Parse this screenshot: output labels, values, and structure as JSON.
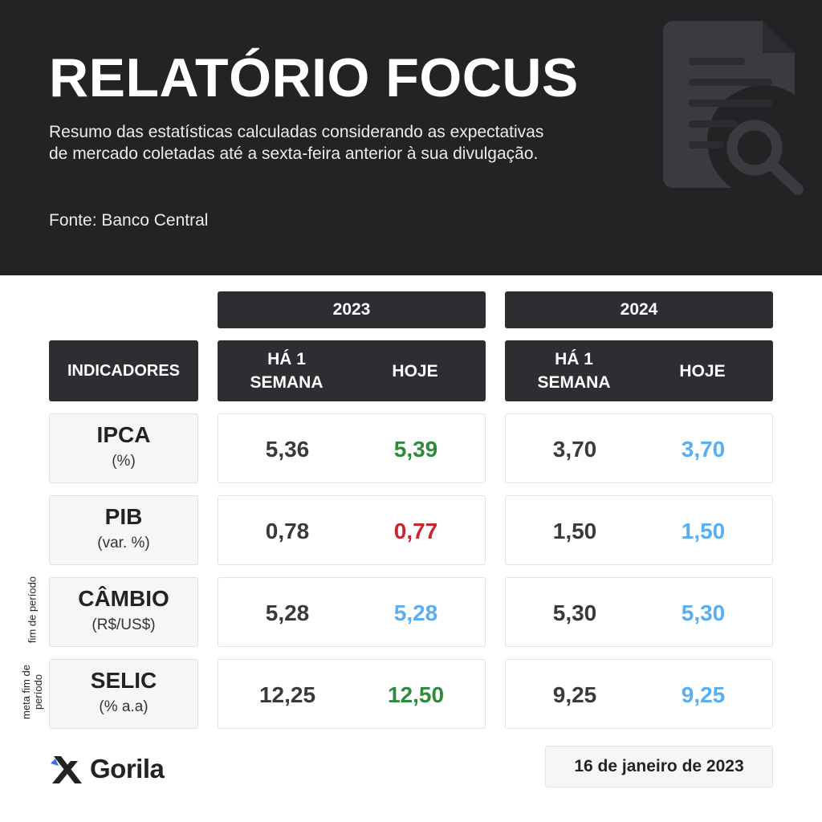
{
  "header": {
    "title": "RELATÓRIO FOCUS",
    "subtitle": "Resumo das estatísticas calculadas considerando as expectativas de mercado coletadas até a sexta-feira anterior à sua divulgação.",
    "source": "Fonte: Banco Central"
  },
  "table": {
    "years": [
      "2023",
      "2024"
    ],
    "indicators_header": "INDICADORES",
    "col_prev": "HÁ 1 SEMANA",
    "col_today": "HOJE",
    "rows": [
      {
        "name": "IPCA",
        "unit": "(%)",
        "note": "",
        "y2023_prev": "5,36",
        "y2023_today": "5,39",
        "y2023_today_color": "#2e8b3e",
        "y2024_prev": "3,70",
        "y2024_today": "3,70",
        "y2024_today_color": "#5aaef2"
      },
      {
        "name": "PIB",
        "unit": "(var. %)",
        "note": "",
        "y2023_prev": "0,78",
        "y2023_today": "0,77",
        "y2023_today_color": "#c8282d",
        "y2024_prev": "1,50",
        "y2024_today": "1,50",
        "y2024_today_color": "#5aaef2"
      },
      {
        "name": "CÂMBIO",
        "unit": "(R$/US$)",
        "note": "fim de período",
        "y2023_prev": "5,28",
        "y2023_today": "5,28",
        "y2023_today_color": "#5aaef2",
        "y2024_prev": "5,30",
        "y2024_today": "5,30",
        "y2024_today_color": "#5aaef2"
      },
      {
        "name": "SELIC",
        "unit": "(% a.a)",
        "note": "meta fim de período",
        "y2023_prev": "12,25",
        "y2023_today": "12,50",
        "y2023_today_color": "#2e8b3e",
        "y2024_prev": "9,25",
        "y2024_today": "9,25",
        "y2024_today_color": "#5aaef2"
      }
    ]
  },
  "footer": {
    "logo_text": "Gorila",
    "date": "16 de janeiro de 2023"
  },
  "icons": {
    "header_icon": "document-search-icon",
    "logo_icon": "gorila-logo-icon"
  },
  "colors": {
    "header_bg": "#232326",
    "up": "#2e8b3e",
    "down": "#c8282d",
    "unchanged": "#5aaef2"
  }
}
